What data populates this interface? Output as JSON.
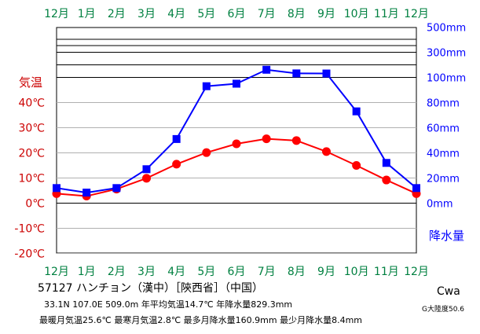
{
  "chart_data": {
    "type": "line",
    "station_line": "57127 ハンチョン（漢中）［陝西省］（中国）",
    "coords_line": "33.1N 107.0E 509.0m 年平均気温14.7℃ 年降水量829.3mm",
    "extremes_line": "最暖月気温25.6℃ 最寒月気温2.8℃ 最多月降水量160.9mm 最少月降水量8.4mm",
    "climate_class": "Cwa",
    "continentality": "G大陸度50.6",
    "x": [
      "12月",
      "1月",
      "2月",
      "3月",
      "4月",
      "5月",
      "6月",
      "7月",
      "8月",
      "9月",
      "10月",
      "11月",
      "12月"
    ],
    "temp_axis": {
      "label": "気温",
      "ticks": [
        "40℃",
        "30℃",
        "20℃",
        "10℃",
        "0℃",
        "-10℃",
        "-20℃"
      ],
      "tick_values": [
        40,
        30,
        20,
        10,
        0,
        -10,
        -20
      ],
      "min": -20,
      "max": 60
    },
    "precip_axis": {
      "label": "降水量",
      "ticks": [
        "500mm",
        "300mm",
        "100mm",
        "80mm",
        "60mm",
        "40mm",
        "20mm",
        "0mm"
      ],
      "tick_values": [
        500,
        300,
        100,
        80,
        60,
        40,
        20,
        0
      ]
    },
    "series": [
      {
        "name": "気温",
        "unit": "℃",
        "color": "#ff0000",
        "values": [
          3.8,
          2.8,
          5.6,
          9.9,
          15.5,
          20.1,
          23.6,
          25.6,
          24.9,
          20.5,
          15.0,
          9.2,
          3.8
        ]
      },
      {
        "name": "降水量",
        "unit": "mm",
        "color": "#0000ff",
        "values": [
          12.0,
          8.4,
          12.0,
          27.0,
          51.0,
          93.0,
          95.0,
          160.9,
          132.0,
          131.0,
          73.0,
          32.0,
          12.0
        ]
      }
    ],
    "colors": {
      "axis_label": "#cc0000",
      "month_label": "#008040",
      "temp": "#ff0000",
      "precip": "#0000ff"
    }
  }
}
